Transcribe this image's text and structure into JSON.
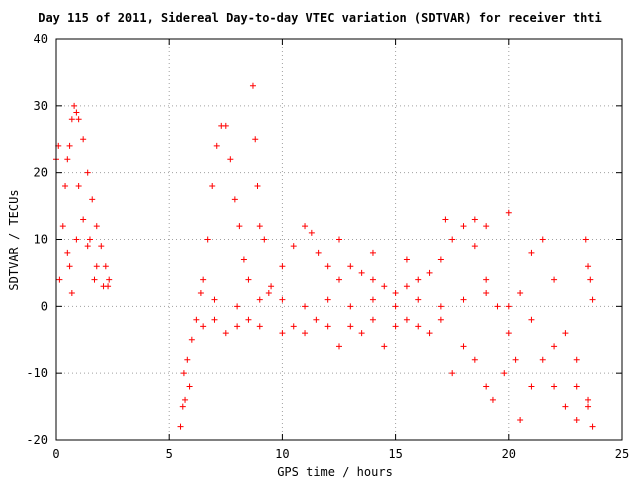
{
  "chart_data": {
    "type": "scatter",
    "title": "Day 115 of 2011, Sidereal Day-to-day VTEC variation (SDTVAR) for receiver thti",
    "xlabel": "GPS time / hours",
    "ylabel": "SDTVAR / TECUs",
    "xlim": [
      0,
      25
    ],
    "ylim": [
      -20,
      40
    ],
    "xticks": [
      0,
      5,
      10,
      15,
      20,
      25
    ],
    "yticks": [
      -20,
      -10,
      0,
      10,
      20,
      30,
      40
    ],
    "grid": true,
    "marker": "plus",
    "colors": {
      "series": "#ff0000",
      "grid": "#a0a0a0",
      "axis": "#000000"
    },
    "series": [
      {
        "values": [
          [
            0.0,
            22
          ],
          [
            0.1,
            24
          ],
          [
            0.15,
            4
          ],
          [
            0.3,
            12
          ],
          [
            0.4,
            18
          ],
          [
            0.5,
            8
          ],
          [
            0.6,
            24
          ],
          [
            0.7,
            28
          ],
          [
            0.8,
            30
          ],
          [
            0.9,
            29
          ],
          [
            1.0,
            28
          ],
          [
            1.2,
            25
          ],
          [
            1.4,
            20
          ],
          [
            1.6,
            16
          ],
          [
            1.8,
            12
          ],
          [
            2.0,
            9
          ],
          [
            2.2,
            6
          ],
          [
            2.35,
            4
          ],
          [
            0.6,
            6
          ],
          [
            0.9,
            10
          ],
          [
            1.2,
            13
          ],
          [
            1.5,
            10
          ],
          [
            1.8,
            6
          ],
          [
            2.1,
            3
          ],
          [
            0.7,
            2
          ],
          [
            1.0,
            18
          ],
          [
            1.4,
            9
          ],
          [
            1.7,
            4
          ],
          [
            2.3,
            3
          ],
          [
            0.5,
            22
          ],
          [
            5.5,
            -18
          ],
          [
            5.6,
            -15
          ],
          [
            5.65,
            -10
          ],
          [
            5.7,
            -14
          ],
          [
            5.8,
            -8
          ],
          [
            5.9,
            -12
          ],
          [
            6.0,
            -5
          ],
          [
            6.2,
            -2
          ],
          [
            6.4,
            2
          ],
          [
            6.5,
            4
          ],
          [
            6.7,
            10
          ],
          [
            6.9,
            18
          ],
          [
            7.1,
            24
          ],
          [
            7.3,
            27
          ],
          [
            7.5,
            27
          ],
          [
            7.7,
            22
          ],
          [
            7.9,
            16
          ],
          [
            8.1,
            12
          ],
          [
            8.3,
            7
          ],
          [
            8.5,
            4
          ],
          [
            8.7,
            33
          ],
          [
            8.8,
            25
          ],
          [
            8.9,
            18
          ],
          [
            9.0,
            12
          ],
          [
            9.2,
            10
          ],
          [
            9.4,
            2
          ],
          [
            6.5,
            -3
          ],
          [
            7.0,
            -2
          ],
          [
            7.5,
            -4
          ],
          [
            8.0,
            -3
          ],
          [
            8.5,
            -2
          ],
          [
            9.0,
            -3
          ],
          [
            9.5,
            3
          ],
          [
            10.0,
            6
          ],
          [
            10.5,
            9
          ],
          [
            11.0,
            12
          ],
          [
            11.3,
            11
          ],
          [
            11.6,
            8
          ],
          [
            12.0,
            6
          ],
          [
            12.5,
            4
          ],
          [
            13.0,
            6
          ],
          [
            13.5,
            5
          ],
          [
            14.0,
            4
          ],
          [
            14.5,
            3
          ],
          [
            15.0,
            2
          ],
          [
            15.5,
            3
          ],
          [
            16.0,
            4
          ],
          [
            16.5,
            5
          ],
          [
            17.0,
            7
          ],
          [
            17.5,
            10
          ],
          [
            18.0,
            12
          ],
          [
            18.5,
            9
          ],
          [
            19.0,
            4
          ],
          [
            19.5,
            0
          ],
          [
            20.0,
            -4
          ],
          [
            20.5,
            2
          ],
          [
            21.0,
            8
          ],
          [
            21.5,
            10
          ],
          [
            22.0,
            4
          ],
          [
            22.5,
            -4
          ],
          [
            23.0,
            -8
          ],
          [
            23.5,
            -14
          ],
          [
            23.7,
            -18
          ],
          [
            10.0,
            -4
          ],
          [
            10.5,
            -3
          ],
          [
            11.0,
            -4
          ],
          [
            11.5,
            -2
          ],
          [
            12.0,
            -3
          ],
          [
            12.5,
            -6
          ],
          [
            13.0,
            -3
          ],
          [
            13.5,
            -4
          ],
          [
            14.0,
            -2
          ],
          [
            14.5,
            -6
          ],
          [
            15.0,
            -3
          ],
          [
            15.5,
            -2
          ],
          [
            16.0,
            -3
          ],
          [
            16.5,
            -4
          ],
          [
            17.0,
            -2
          ],
          [
            17.5,
            -10
          ],
          [
            18.0,
            -6
          ],
          [
            18.5,
            -8
          ],
          [
            19.0,
            -12
          ],
          [
            19.3,
            -14
          ],
          [
            19.8,
            -10
          ],
          [
            20.3,
            -8
          ],
          [
            20.5,
            -17
          ],
          [
            21.0,
            -12
          ],
          [
            21.5,
            -8
          ],
          [
            22.0,
            -12
          ],
          [
            22.5,
            -15
          ],
          [
            23.0,
            -17
          ],
          [
            23.5,
            -15
          ],
          [
            20.0,
            14
          ],
          [
            17.2,
            13
          ],
          [
            18.5,
            13
          ],
          [
            19.0,
            12
          ],
          [
            23.4,
            10
          ],
          [
            23.5,
            6
          ],
          [
            23.6,
            4
          ],
          [
            23.7,
            1
          ],
          [
            11.0,
            0
          ],
          [
            12.0,
            1
          ],
          [
            13.0,
            0
          ],
          [
            14.0,
            1
          ],
          [
            15.0,
            0
          ],
          [
            16.0,
            1
          ],
          [
            17.0,
            0
          ],
          [
            18.0,
            1
          ],
          [
            19.0,
            2
          ],
          [
            20.0,
            0
          ],
          [
            21.0,
            -2
          ],
          [
            22.0,
            -6
          ],
          [
            23.0,
            -12
          ],
          [
            7.0,
            1
          ],
          [
            8.0,
            0
          ],
          [
            9.0,
            1
          ],
          [
            10.0,
            1
          ],
          [
            12.5,
            10
          ],
          [
            14.0,
            8
          ],
          [
            15.5,
            7
          ]
        ]
      }
    ]
  }
}
